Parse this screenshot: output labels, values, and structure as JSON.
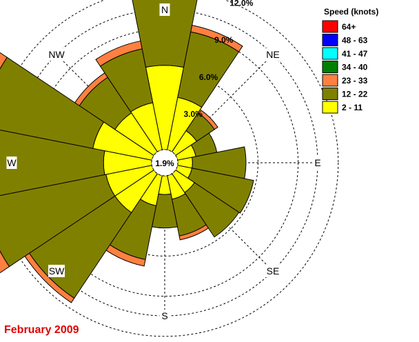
{
  "caption": "February 2009",
  "chart_data": {
    "type": "wind-rose",
    "units": "percent frequency",
    "calm_percent": "1.9%",
    "ring_labels": [
      {
        "value": 3,
        "text": "3.0%"
      },
      {
        "value": 6,
        "text": "6.0%"
      },
      {
        "value": 9,
        "text": "9.0%"
      },
      {
        "value": 12,
        "text": "12.0%"
      }
    ],
    "directions": [
      "N",
      "NNE",
      "NE",
      "ENE",
      "E",
      "ESE",
      "SE",
      "SSE",
      "S",
      "SSW",
      "SW",
      "WSW",
      "W",
      "WNW",
      "NW",
      "NNW"
    ],
    "direction_labels": [
      {
        "text": "N",
        "deg": 0
      },
      {
        "text": "NE",
        "deg": 45
      },
      {
        "text": "E",
        "deg": 90
      },
      {
        "text": "SE",
        "deg": 135
      },
      {
        "text": "S",
        "deg": 180
      },
      {
        "text": "SW",
        "deg": 225
      },
      {
        "text": "W",
        "deg": 270
      },
      {
        "text": "NW",
        "deg": 315
      }
    ],
    "legend": {
      "title": "Speed (knots)",
      "items": [
        {
          "label": "64+",
          "color": "#ff0000"
        },
        {
          "label": "48 - 63",
          "color": "#0000ff"
        },
        {
          "label": "41 - 47",
          "color": "#00ffff"
        },
        {
          "label": "34 - 40",
          "color": "#008000"
        },
        {
          "label": "23 - 33",
          "color": "#ff8040"
        },
        {
          "label": "12 - 22",
          "color": "#808000"
        },
        {
          "label": "2 - 11",
          "color": "#ffff00"
        }
      ]
    },
    "series": [
      {
        "name": "2 - 11",
        "color": "#ffff00",
        "values": [
          6.3,
          4.0,
          1.9,
          1.4,
          1.1,
          1.1,
          1.7,
          1.8,
          1.4,
          2.3,
          3.5,
          3.5,
          3.6,
          4.5,
          3.5,
          3.6
        ]
      },
      {
        "name": "12 - 22",
        "color": "#808000",
        "values": [
          10.6,
          5.0,
          1.6,
          1.6,
          4.0,
          4.7,
          4.0,
          2.8,
          2.5,
          4.1,
          7.7,
          9.5,
          9.6,
          8.7,
          3.2,
          4.1
        ]
      },
      {
        "name": "23 - 33",
        "color": "#ff8040",
        "values": [
          1.2,
          0.5,
          0.3,
          0.0,
          0.0,
          0.0,
          0.0,
          0.3,
          0.0,
          0.5,
          0.4,
          3.9,
          0.6,
          4.6,
          0.4,
          0.6
        ]
      },
      {
        "name": "34 - 40",
        "color": "#008000",
        "values": [
          0.0,
          0.0,
          0.0,
          0.0,
          0.0,
          0.0,
          0.0,
          0.0,
          0.0,
          0.0,
          0.0,
          0.5,
          0.3,
          0.3,
          0.0,
          0.0
        ]
      },
      {
        "name": "41 - 47",
        "color": "#00ffff",
        "values": [
          0,
          0,
          0,
          0,
          0,
          0,
          0,
          0,
          0,
          0,
          0,
          0,
          0,
          0,
          0,
          0
        ]
      },
      {
        "name": "48 - 63",
        "color": "#0000ff",
        "values": [
          0,
          0,
          0,
          0,
          0,
          0,
          0,
          0,
          0,
          0,
          0,
          0,
          0,
          0,
          0,
          0
        ]
      },
      {
        "name": "64+",
        "color": "#ff0000",
        "values": [
          0,
          0,
          0,
          0,
          0,
          0,
          0,
          0,
          0,
          0,
          0,
          0,
          0,
          0,
          0,
          0
        ]
      }
    ],
    "grid": true
  }
}
